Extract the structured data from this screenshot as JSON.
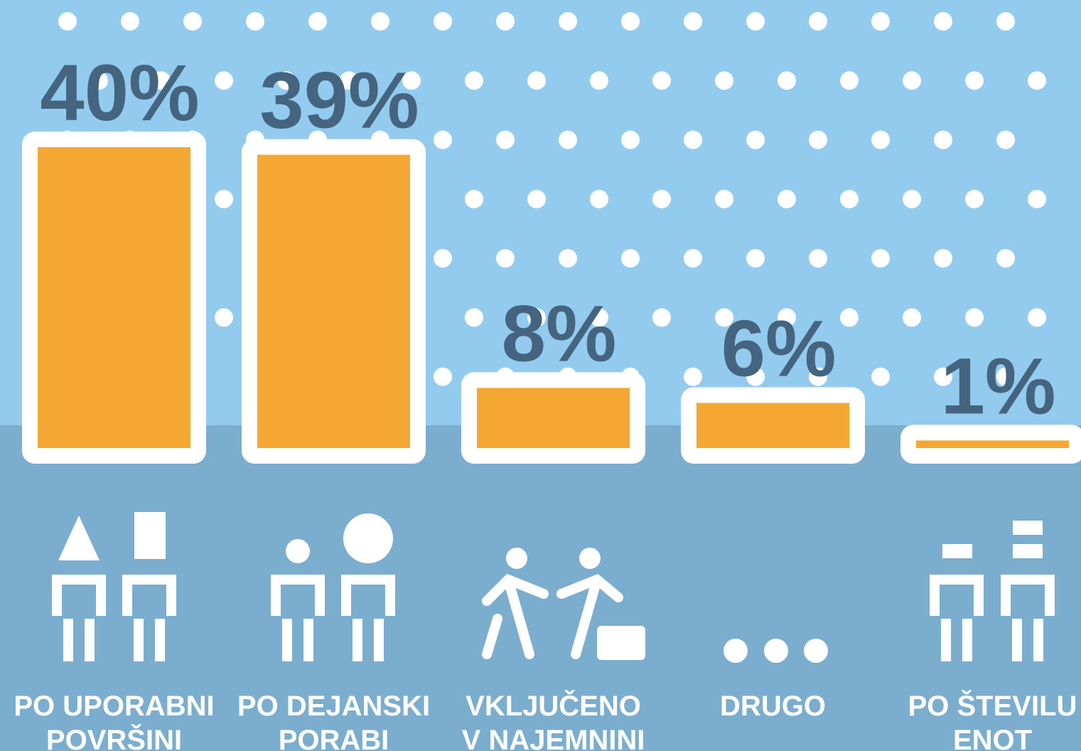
{
  "chart_data": {
    "type": "bar",
    "categories": [
      [
        "PO UPORABNI",
        "POVRŠINI"
      ],
      [
        "PO DEJANSKI",
        "PORABI"
      ],
      [
        "VKLJUČENO",
        "V NAJEMNINI"
      ],
      [
        "DRUGO"
      ],
      [
        "PO ŠTEVILU",
        "ENOT"
      ]
    ],
    "values": [
      40,
      39,
      8,
      6,
      1
    ],
    "value_labels": [
      "40%",
      "39%",
      "8%",
      "6%",
      "1%"
    ],
    "color": "#f5a733"
  }
}
